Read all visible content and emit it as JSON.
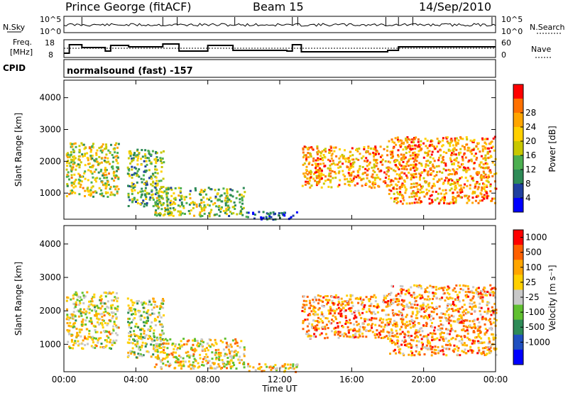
{
  "header": {
    "station": "Prince George (fitACF)",
    "beam": "Beam 15",
    "date": "14/Sep/2010"
  },
  "panels": {
    "nsky": {
      "label": "N.Sky",
      "right_label": "N.Search",
      "ticks_left": [
        "10^5",
        "10^0"
      ],
      "ticks_right": [
        "10^5",
        "10^0"
      ]
    },
    "freq": {
      "label_line1": "Freq.",
      "label_line2": "[MHz]",
      "ticks_left": [
        "18",
        "8"
      ],
      "right_label": "Nave",
      "ticks_right": [
        "60",
        "0"
      ]
    },
    "cpid": {
      "label": "CPID",
      "text": "normalsound (fast) -157"
    }
  },
  "colors": {
    "power": [
      "#0000ff",
      "#2040a0",
      "#2e8b57",
      "#4caf50",
      "#c8c800",
      "#ffd000",
      "#ffa500",
      "#ff7000",
      "#ff0000"
    ],
    "velocity": [
      "#0000ff",
      "#2050c0",
      "#2e8b57",
      "#60c030",
      "#c8c8c8",
      "#ffd000",
      "#ffa500",
      "#ff6000",
      "#ff0000"
    ]
  },
  "chart_data": [
    {
      "type": "heatmap",
      "name": "power",
      "ylabel": "Slant Range [km]",
      "xlabel": "",
      "ylim": [
        180,
        4550
      ],
      "yticks": [
        "1000",
        "2000",
        "3000",
        "4000"
      ],
      "colorbar_label": "Power [dB]",
      "colorbar_ticks": [
        "4",
        "8",
        "12",
        "16",
        "20",
        "24",
        "28"
      ],
      "regions": [
        {
          "x": [
            0.1,
            3.0
          ],
          "y": [
            900,
            2600
          ],
          "level": 0.55
        },
        {
          "x": [
            3.5,
            5.5
          ],
          "y": [
            600,
            2400
          ],
          "level": 0.4
        },
        {
          "x": [
            5.0,
            10.0
          ],
          "y": [
            300,
            1200
          ],
          "level": 0.45
        },
        {
          "x": [
            10.0,
            13.0
          ],
          "y": [
            200,
            450
          ],
          "level": 0.15
        },
        {
          "x": [
            13.2,
            18.0
          ],
          "y": [
            1200,
            2500
          ],
          "level": 0.7
        },
        {
          "x": [
            18.0,
            24.0
          ],
          "y": [
            700,
            2800
          ],
          "level": 0.75
        }
      ]
    },
    {
      "type": "heatmap",
      "name": "velocity",
      "ylabel": "Slant Range [km]",
      "xlabel": "Time UT",
      "ylim": [
        180,
        4550
      ],
      "yticks": [
        "1000",
        "2000",
        "3000",
        "4000"
      ],
      "xticks": [
        "00:00",
        "04:00",
        "08:00",
        "12:00",
        "16:00",
        "20:00",
        "00:00"
      ],
      "colorbar_label": "Velocity [m s⁻¹]",
      "colorbar_ticks": [
        "1000",
        "500",
        "100",
        "25",
        "-25",
        "-100",
        "-500",
        "-1000"
      ],
      "regions": [
        {
          "x": [
            0.1,
            3.0
          ],
          "y": [
            900,
            2600
          ],
          "level": 0.55
        },
        {
          "x": [
            3.5,
            5.5
          ],
          "y": [
            600,
            2400
          ],
          "level": 0.5
        },
        {
          "x": [
            5.0,
            10.0
          ],
          "y": [
            300,
            1200
          ],
          "level": 0.6
        },
        {
          "x": [
            10.0,
            13.0
          ],
          "y": [
            200,
            450
          ],
          "level": 0.6
        },
        {
          "x": [
            13.2,
            18.0
          ],
          "y": [
            1200,
            2500
          ],
          "level": 0.72
        },
        {
          "x": [
            18.0,
            24.0
          ],
          "y": [
            700,
            2800
          ],
          "level": 0.7
        }
      ]
    }
  ]
}
